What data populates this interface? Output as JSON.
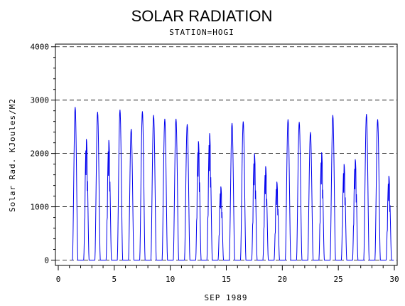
{
  "chart_data": {
    "type": "line",
    "title": "SOLAR RADIATION",
    "subtitle": "STATION=HOGI",
    "xlabel": "SEP 1989",
    "ylabel": "Solar Rad. KJoules/M2",
    "xlim": [
      0,
      30
    ],
    "ylim": [
      -100,
      4050
    ],
    "x_ticks": [
      "0",
      "5",
      "10",
      "15",
      "20",
      "25",
      "30"
    ],
    "y_ticks": [
      "0",
      "1000",
      "2000",
      "3000",
      "4000"
    ],
    "grid": "dashed horizontal at y ticks",
    "series": [
      {
        "color": "#0000ee",
        "daily_peaks": [
          {
            "day": 1,
            "peak": 2870
          },
          {
            "day": 2,
            "peak": 2270
          },
          {
            "day": 3,
            "peak": 2780
          },
          {
            "day": 4,
            "peak": 2250
          },
          {
            "day": 5,
            "peak": 2820
          },
          {
            "day": 6,
            "peak": 2460
          },
          {
            "day": 7,
            "peak": 2790
          },
          {
            "day": 8,
            "peak": 2720
          },
          {
            "day": 9,
            "peak": 2650
          },
          {
            "day": 10,
            "peak": 2650
          },
          {
            "day": 11,
            "peak": 2550
          },
          {
            "day": 12,
            "peak": 2230
          },
          {
            "day": 13,
            "peak": 2380
          },
          {
            "day": 14,
            "peak": 1380
          },
          {
            "day": 15,
            "peak": 2570
          },
          {
            "day": 16,
            "peak": 2600
          },
          {
            "day": 17,
            "peak": 2000
          },
          {
            "day": 18,
            "peak": 1760
          },
          {
            "day": 19,
            "peak": 1470
          },
          {
            "day": 20,
            "peak": 2640
          },
          {
            "day": 21,
            "peak": 2590
          },
          {
            "day": 22,
            "peak": 2400
          },
          {
            "day": 23,
            "peak": 2020
          },
          {
            "day": 24,
            "peak": 2720
          },
          {
            "day": 25,
            "peak": 1800
          },
          {
            "day": 26,
            "peak": 1890
          },
          {
            "day": 27,
            "peak": 2740
          },
          {
            "day": 28,
            "peak": 2640
          },
          {
            "day": 29,
            "peak": 1580
          }
        ]
      }
    ]
  }
}
